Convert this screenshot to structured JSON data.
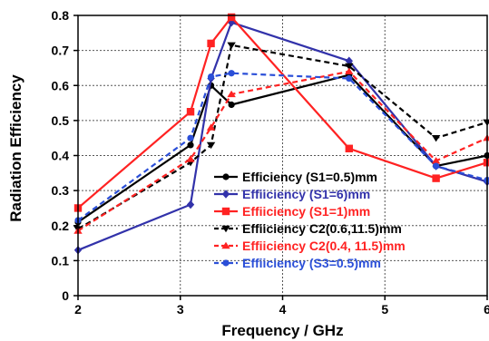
{
  "chart_data": {
    "type": "line",
    "title": "",
    "xlabel": "Frequency / GHz",
    "ylabel": "Radiation Efficiency",
    "xlim": [
      2,
      6
    ],
    "ylim": [
      0,
      0.8
    ],
    "xticks": [
      "2",
      "3",
      "4",
      "5",
      "6"
    ],
    "yticks": [
      "0",
      "0.1",
      "0.2",
      "0.3",
      "0.4",
      "0.5",
      "0.6",
      "0.7",
      "0.8"
    ],
    "grid": true,
    "legend_position": "bottom-right",
    "series": [
      {
        "name": "Efficiency (S1=0.5)mm",
        "color": "#000000",
        "dash": "solid",
        "marker": "circle",
        "x": [
          2,
          3.1,
          3.3,
          3.5,
          4.65,
          5.5,
          6
        ],
        "y": [
          0.21,
          0.43,
          0.6,
          0.545,
          0.63,
          0.37,
          0.4
        ]
      },
      {
        "name": "Effiiciency (S1=6)mm",
        "color": "#3232aa",
        "dash": "solid",
        "marker": "diamond",
        "x": [
          2,
          3.1,
          3.3,
          3.5,
          4.65,
          5.5,
          6
        ],
        "y": [
          0.13,
          0.26,
          0.62,
          0.78,
          0.67,
          0.37,
          0.325
        ]
      },
      {
        "name": "Effiiciency (S1=1)mm",
        "color": "#ff2222",
        "dash": "solid",
        "marker": "square",
        "x": [
          2,
          3.1,
          3.3,
          3.5,
          4.65,
          5.5,
          6
        ],
        "y": [
          0.25,
          0.525,
          0.72,
          0.795,
          0.42,
          0.335,
          0.38
        ]
      },
      {
        "name": "Effiiciency C2(0.6,11.5)mm",
        "color": "#000000",
        "dash": "dash",
        "marker": "triangle-down",
        "x": [
          2,
          3.1,
          3.3,
          3.5,
          4.65,
          5.5,
          6
        ],
        "y": [
          0.19,
          0.38,
          0.43,
          0.715,
          0.655,
          0.45,
          0.495
        ]
      },
      {
        "name": "Effiiciency C2(0.4, 11.5)mm",
        "color": "#ff2222",
        "dash": "dash",
        "marker": "triangle-up",
        "x": [
          2,
          3.1,
          3.3,
          3.5,
          4.65,
          5.5,
          6
        ],
        "y": [
          0.185,
          0.39,
          0.48,
          0.575,
          0.64,
          0.385,
          0.45
        ]
      },
      {
        "name": "Effiiciency (S3=0.5)mm",
        "color": "#2b4fd8",
        "dash": "dash",
        "marker": "circle",
        "x": [
          2,
          3.1,
          3.3,
          3.5,
          4.65,
          5.5,
          6
        ],
        "y": [
          0.215,
          0.45,
          0.625,
          0.635,
          0.62,
          0.37,
          0.33
        ]
      }
    ]
  }
}
